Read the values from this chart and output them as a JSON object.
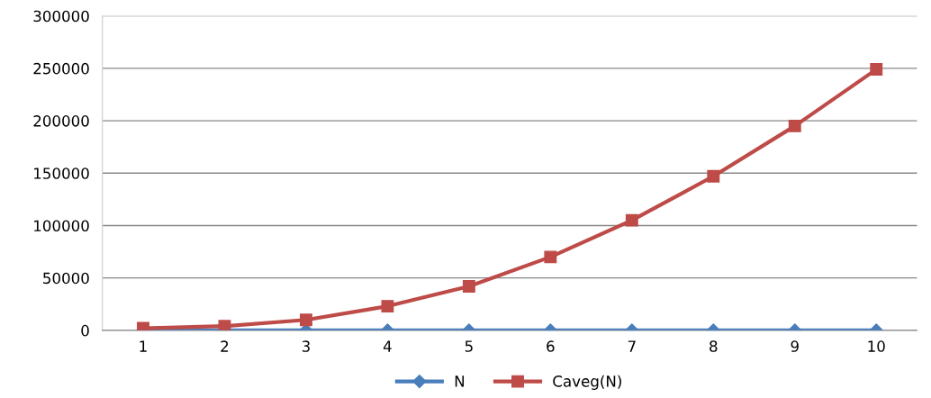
{
  "chart_data": {
    "type": "line",
    "categories": [
      "1",
      "2",
      "3",
      "4",
      "5",
      "6",
      "7",
      "8",
      "9",
      "10"
    ],
    "series": [
      {
        "name": "N",
        "color": "#4a7ebb",
        "marker": "diamond",
        "values": [
          0,
          0,
          0,
          0,
          0,
          0,
          0,
          0,
          0,
          0
        ]
      },
      {
        "name": "Caveg(N)",
        "color": "#be4b48",
        "marker": "square",
        "values": [
          2000,
          4000,
          10000,
          23000,
          42000,
          70000,
          105000,
          147000,
          195000,
          249000
        ]
      }
    ],
    "ylim": [
      0,
      300000
    ],
    "yticks": [
      0,
      50000,
      100000,
      150000,
      200000,
      250000,
      300000
    ],
    "grid": "y",
    "legend": "bottom",
    "line_style": "solid"
  }
}
